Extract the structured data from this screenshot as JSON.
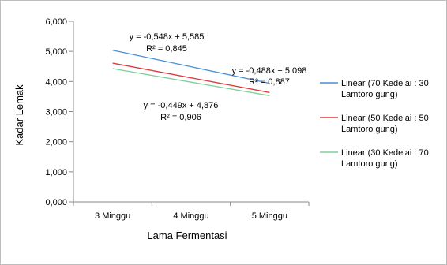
{
  "chart_data": {
    "type": "line",
    "title": "",
    "xlabel": "Lama Fermentasi",
    "ylabel": "Kadar Lemak",
    "categories": [
      "3 Minggu",
      "4 Minggu",
      "5 Minggu"
    ],
    "ylim": [
      0,
      6
    ],
    "yticks": [
      "0,000",
      "1,000",
      "2,000",
      "3,000",
      "4,000",
      "5,000",
      "6,000"
    ],
    "grid": false,
    "legend_position": "right",
    "series": [
      {
        "name": "Linear (70 Kedelai : 30 Lamtoro gung)",
        "legend_lines": [
          "Linear (70 Kedelai : 30",
          "Lamtoro gung)"
        ],
        "color": "#4a90d9",
        "values": [
          5.037,
          4.489,
          3.941
        ],
        "equation": "y = -0,548x + 5,585",
        "r2": "R² = 0,845"
      },
      {
        "name": "Linear (50 Kedelai : 50 Lamtoro gung)",
        "legend_lines": [
          "Linear (50 Kedelai : 50",
          "Lamtoro gung)"
        ],
        "color": "#e0393e",
        "values": [
          4.61,
          4.122,
          3.634
        ],
        "equation": "y = -0,488x + 5,098",
        "r2": "R² = 0,887"
      },
      {
        "name": "Linear (30 Kedelai : 70 Lamtoro gung)",
        "legend_lines": [
          "Linear (30 Kedelai : 70",
          "Lamtoro gung)"
        ],
        "color": "#7fcf9a",
        "values": [
          4.427,
          3.978,
          3.529
        ],
        "equation": "y = -0,449x + 4,876",
        "r2": "R² = 0,906"
      }
    ]
  }
}
